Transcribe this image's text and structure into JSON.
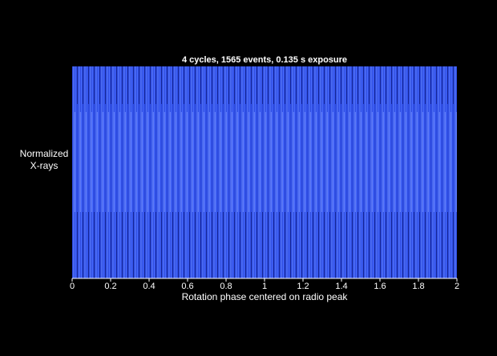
{
  "chart_data": {
    "type": "eventplot",
    "title": "4 cycles, 1565 events, 0.135 s exposure",
    "xlabel": "Rotation phase centered on radio peak",
    "ylabel": [
      "Normalized",
      "X-rays"
    ],
    "color": "#3556f0",
    "xlim": [
      0,
      2
    ],
    "xticks": [
      0,
      0.2,
      0.4,
      0.6,
      0.8,
      1,
      1.2,
      1.4,
      1.6,
      1.8,
      2
    ]
  }
}
